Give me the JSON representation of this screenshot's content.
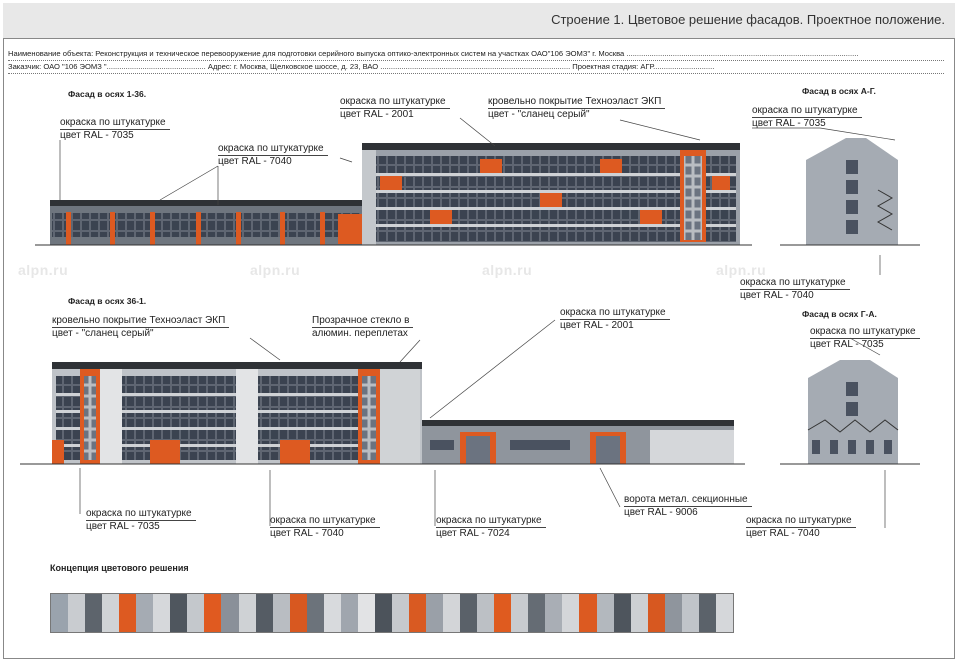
{
  "header": {
    "title": "Строение 1. Цветовое решение фасадов. Проектное положение."
  },
  "info": {
    "object_line": "Наименование объекта:  Реконструкция и техническое перевооружение  для подготовки серийного выпуска оптико-электронных систем на участках ОАО\"106 ЭОМЗ\" г. Москва ..............................................................................................................",
    "customer_line": "Заказчик: ОАО \"106 ЭОМЗ \"...............................................  Адрес:  г. Москва, Щелковское шоссе, д. 23, ВАО ..........................................................................................  Проектная стадия: АГР............................."
  },
  "facades": {
    "f1_36": "Фасад в осях 1-36.",
    "f_ag": "Фасад в осях А-Г.",
    "f36_1": "Фасад в осях 36-1.",
    "f_ga": "Фасад в осях Г-А."
  },
  "callouts": {
    "c1": {
      "l1": "окраска по штукатурке",
      "l2": "цвет RAL - 7035"
    },
    "c2": {
      "l1": "окраска по штукатурке",
      "l2": "цвет RAL - 7040"
    },
    "c3": {
      "l1": "окраска по штукатурке",
      "l2": "цвет RAL - 2001"
    },
    "c4": {
      "l1": "кровельно покрытие Технoэласт ЭКП",
      "l2": "цвет - \"сланец серый\""
    },
    "c5": {
      "l1": "окраска по штукатурке",
      "l2": "цвет RAL - 7035"
    },
    "c6": {
      "l1": "окраска по штукатурке",
      "l2": "цвет RAL - 7040"
    },
    "c7": {
      "l1": "кровельно покрытие Технoэласт ЭКП",
      "l2": "цвет - \"сланец серый\""
    },
    "c8": {
      "l1": "Прозрачное стекло в",
      "l2": "алюмин. переплетах"
    },
    "c9": {
      "l1": "окраска по штукатурке",
      "l2": "цвет RAL - 2001"
    },
    "c10": {
      "l1": "окраска по штукатурке",
      "l2": "цвет RAL - 7035"
    },
    "c11": {
      "l1": "окраска по штукатурке",
      "l2": "цвет RAL - 7035"
    },
    "c12": {
      "l1": "окраска по штукатурке",
      "l2": "цвет RAL - 7040"
    },
    "c13": {
      "l1": "окраска по штукатурке",
      "l2": "цвет RAL - 7024"
    },
    "c14": {
      "l1": "ворота метал. секционные",
      "l2": "цвет RAL - 9006"
    },
    "c15": {
      "l1": "окраска по штукатурке",
      "l2": "цвет RAL - 7040"
    }
  },
  "watermark": "alpn.ru",
  "concept": {
    "title": "Концепция цветового решения",
    "swatches": [
      "#9aa3ad",
      "#c9ccd0",
      "#5d646c",
      "#d0d3d6",
      "#dd5a21",
      "#a5abb3",
      "#d6d8db",
      "#4f565e",
      "#c4c8cc",
      "#e05a20",
      "#8a9099",
      "#cfd2d5",
      "#555c64",
      "#b9bdc2",
      "#d85820",
      "#6c737b",
      "#d8dadd",
      "#a0a6ae",
      "#e2e3e5",
      "#4c535b",
      "#c6c9cd",
      "#d95a22",
      "#9aa0a8",
      "#d3d5d8",
      "#5a6169",
      "#bcc0c5",
      "#df5b1f",
      "#c8cbcf",
      "#656c74",
      "#a9aeb5",
      "#d4d6d9",
      "#dc5a21",
      "#b3b8be",
      "#4e555d",
      "#cdd0d3",
      "#d75820",
      "#8f959d",
      "#c0c4c9",
      "#5b626a",
      "#d5d7da"
    ]
  },
  "colors": {
    "orange": "#dd5a21",
    "dark": "#3c3f44",
    "light": "#cfd2d5",
    "mid": "#8a9099",
    "roof": "#2f3236",
    "window": "#4a5260"
  }
}
